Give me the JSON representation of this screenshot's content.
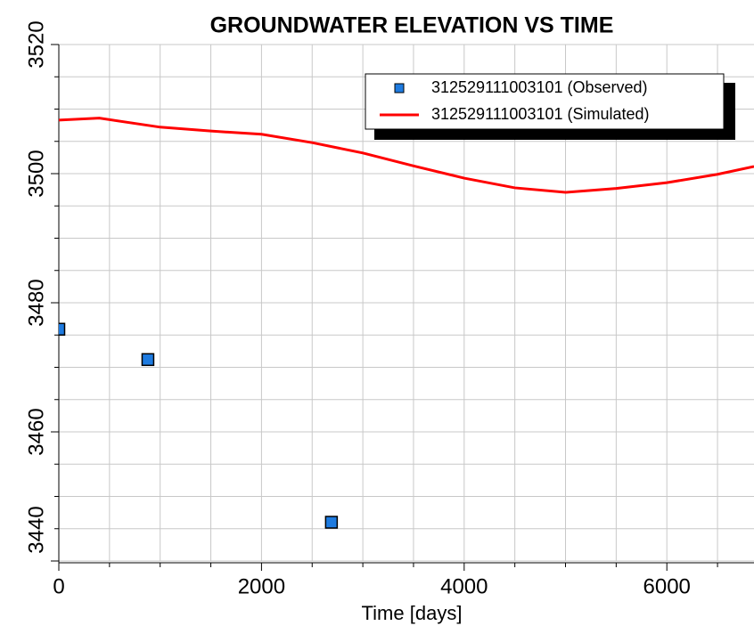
{
  "chart_data": {
    "type": "line",
    "title": "GROUNDWATER ELEVATION VS TIME",
    "x_label": "Time [days]",
    "xlim": [
      0,
      6860
    ],
    "xticks": [
      0,
      2000,
      4000,
      6000
    ],
    "xminorticks": [
      500,
      1000,
      1500,
      2500,
      3000,
      3500,
      4500,
      5000,
      5500,
      6500
    ],
    "ylim": [
      3440,
      3520
    ],
    "yticks": [
      3440,
      3460,
      3480,
      3500,
      3520
    ],
    "yminorticks": [
      3445,
      3450,
      3455,
      3465,
      3470,
      3475,
      3485,
      3490,
      3495,
      3505,
      3510,
      3515
    ],
    "grid": true,
    "legend": "upper right",
    "series": [
      {
        "name": "312529111003101 (Observed)",
        "color": "#1e7be0",
        "marker": "square",
        "x": [
          0,
          879,
          2690
        ],
        "values": [
          3475.9,
          3471.2,
          3446
        ]
      },
      {
        "name": "312529111003101 (Simulated)",
        "color": "#ff0000",
        "marker": "line",
        "x": [
          0,
          400,
          1000,
          1500,
          2000,
          2500,
          3000,
          3500,
          4000,
          4500,
          5000,
          5500,
          6000,
          6500,
          6860
        ],
        "values": [
          3508.3,
          3508.6,
          3507.2,
          3506.6,
          3506.1,
          3504.8,
          3503.2,
          3501.2,
          3499.3,
          3497.8,
          3497.1,
          3497.7,
          3498.6,
          3499.9,
          3501.1
        ]
      }
    ]
  }
}
